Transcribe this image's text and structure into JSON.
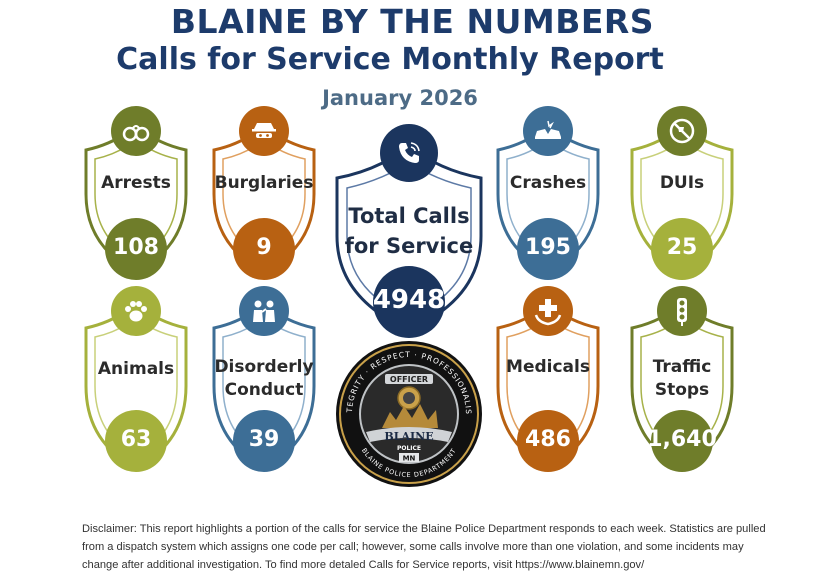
{
  "header": {
    "title": "BLAINE BY THE NUMBERS",
    "subtitle": "Calls for Service Monthly Report",
    "month": "January 2026"
  },
  "colors": {
    "olive": "#6f7d2a",
    "orange": "#b86112",
    "blue": "#3d6e96",
    "navy": "#1b355e",
    "title": "#1d3b6b"
  },
  "stats": {
    "arrests": {
      "label": "Arrests",
      "value": "108",
      "icon": "handcuffs-icon"
    },
    "burglaries": {
      "label": "Burglaries",
      "value": "9",
      "icon": "burglar-icon"
    },
    "total": {
      "label_line1": "Total Calls",
      "label_line2": "for Service",
      "value": "4948",
      "icon": "phone-icon"
    },
    "crashes": {
      "label": "Crashes",
      "value": "195",
      "icon": "car-crash-icon"
    },
    "duis": {
      "label": "DUIs",
      "value": "25",
      "icon": "no-drinking-driving-icon"
    },
    "animals": {
      "label": "Animals",
      "value": "63",
      "icon": "paw-icon"
    },
    "disorderly": {
      "label_line1": "Disorderly",
      "label_line2": "Conduct",
      "value": "39",
      "icon": "argument-icon"
    },
    "medicals": {
      "label": "Medicals",
      "value": "486",
      "icon": "medical-cross-icon"
    },
    "traffic": {
      "label_line1": "Traffic",
      "label_line2": "Stops",
      "value": "1,640",
      "icon": "traffic-light-icon"
    }
  },
  "badge": {
    "top_words": "INTEGRITY · RESPECT · PROFESSIONALISM",
    "officer": "OFFICER",
    "city": "BLAINE",
    "dept_word": "POLICE",
    "state": "MN",
    "bottom_words": "BLAINE POLICE DEPARTMENT"
  },
  "disclaimer": "Disclaimer: This report highlights a portion of the calls for service the Blaine Police Department responds to each week. Statistics are pulled from a dispatch system which assigns one code per call; however, some calls involve more than one violation, and some incidents may change after additional investigation. To find more detaled Calls  for Service reports, visit https://www.blainemn.gov/"
}
